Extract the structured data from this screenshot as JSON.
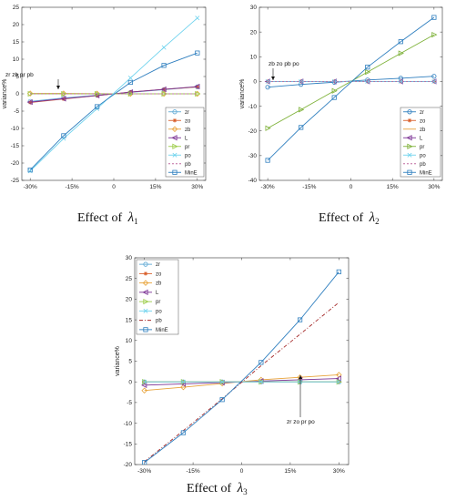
{
  "chart_data": [
    {
      "type": "line",
      "caption": "Effect of",
      "caption_symbol": "λ",
      "caption_sub": "1",
      "ylabel": "variance%",
      "xlabel": "",
      "x": [
        -30,
        -18,
        -6,
        6,
        18,
        30
      ],
      "x_ticks": [
        -30,
        -15,
        0,
        15,
        30
      ],
      "x_tick_labels": [
        "-30%",
        "-15%",
        "0",
        "15%",
        "30%"
      ],
      "xlim": [
        -33,
        33
      ],
      "ylim": [
        -25,
        25
      ],
      "y_ticks": [
        -25,
        -20,
        -15,
        -10,
        -5,
        0,
        5,
        10,
        15,
        20,
        25
      ],
      "grid": false,
      "legend_position": "bottom-right",
      "annotation": "zr zb pr pb",
      "series": [
        {
          "name": "zr",
          "color": "#5fa9d4",
          "marker": "circle",
          "dash": "",
          "values": [
            -2.2,
            -1.2,
            -0.4,
            0.4,
            1.2,
            2.0
          ]
        },
        {
          "name": "zo",
          "color": "#d95f2b",
          "marker": "star",
          "dash": "",
          "values": [
            -2.5,
            -1.5,
            -0.5,
            0.5,
            1.3,
            2.0
          ]
        },
        {
          "name": "zb",
          "color": "#e8a33a",
          "marker": "diamond",
          "dash": "",
          "values": [
            0.1,
            0.1,
            0.05,
            0,
            0,
            0
          ]
        },
        {
          "name": "L",
          "color": "#7b3294",
          "marker": "triangle-left",
          "dash": "",
          "values": [
            -2.4,
            -1.4,
            -0.5,
            0.5,
            1.3,
            2.1
          ]
        },
        {
          "name": "pr",
          "color": "#9ccc48",
          "marker": "triangle-right",
          "dash": "",
          "values": [
            0,
            0,
            0,
            0,
            0,
            0
          ]
        },
        {
          "name": "po",
          "color": "#6fd3ee",
          "marker": "x",
          "dash": "",
          "values": [
            -22.3,
            -12.9,
            -4.3,
            4.6,
            13.4,
            21.9
          ]
        },
        {
          "name": "pb",
          "color": "#c06aa0",
          "marker": "none",
          "dash": "2,2",
          "values": [
            0,
            0,
            0,
            0,
            0,
            0
          ]
        },
        {
          "name": "MinE",
          "color": "#2f7fbf",
          "marker": "square",
          "dash": "",
          "values": [
            -22.0,
            -12.1,
            -3.7,
            3.3,
            8.2,
            11.8
          ]
        }
      ]
    },
    {
      "type": "line",
      "caption": "Effect of",
      "caption_symbol": "λ",
      "caption_sub": "2",
      "ylabel": "variance%",
      "xlabel": "",
      "x": [
        -30,
        -18,
        -6,
        6,
        18,
        30
      ],
      "x_ticks": [
        -30,
        -15,
        0,
        15,
        30
      ],
      "x_tick_labels": [
        "-30%",
        "-15%",
        "0",
        "15%",
        "30%"
      ],
      "xlim": [
        -33,
        33
      ],
      "ylim": [
        -40,
        30
      ],
      "y_ticks": [
        -40,
        -30,
        -20,
        -10,
        0,
        10,
        20,
        30
      ],
      "grid": false,
      "legend_position": "bottom-right",
      "annotation": "zb zo pb po",
      "series": [
        {
          "name": "zr",
          "color": "#2f7fbf",
          "marker": "circle",
          "dash": "",
          "values": [
            -2.3,
            -1.2,
            -0.3,
            0.6,
            1.3,
            2.1
          ]
        },
        {
          "name": "zo",
          "color": "#d95f2b",
          "marker": "star",
          "dash": "",
          "values": [
            0,
            0,
            0,
            0,
            0,
            0
          ]
        },
        {
          "name": "zb",
          "color": "#e8a33a",
          "marker": "none",
          "dash": "",
          "values": [
            0,
            0,
            0,
            0,
            0,
            0
          ]
        },
        {
          "name": "L",
          "color": "#7b3294",
          "marker": "triangle-left",
          "dash": "",
          "values": [
            0,
            0,
            0,
            0,
            0,
            0
          ]
        },
        {
          "name": "pr",
          "color": "#7fb23a",
          "marker": "triangle-right",
          "dash": "",
          "values": [
            -18.9,
            -11.4,
            -3.8,
            3.8,
            11.4,
            18.9
          ]
        },
        {
          "name": "po",
          "color": "#6fd3ee",
          "marker": "x",
          "dash": "",
          "values": [
            0,
            0,
            0,
            0,
            0,
            0
          ]
        },
        {
          "name": "pb",
          "color": "#c06aa0",
          "marker": "none",
          "dash": "2,2",
          "values": [
            0,
            0,
            0,
            0,
            0,
            0
          ]
        },
        {
          "name": "MinE",
          "color": "#2f7fbf",
          "marker": "square",
          "dash": "",
          "values": [
            -31.9,
            -18.6,
            -6.5,
            5.8,
            16.1,
            25.9
          ]
        }
      ]
    },
    {
      "type": "line",
      "caption": "Effect of",
      "caption_symbol": "λ",
      "caption_sub": "3",
      "ylabel": "variance%",
      "xlabel": "",
      "x": [
        -30,
        -18,
        -6,
        6,
        18,
        30
      ],
      "x_ticks": [
        -30,
        -15,
        0,
        15,
        30
      ],
      "x_tick_labels": [
        "-30%",
        "-15%",
        "0",
        "15%",
        "30%"
      ],
      "xlim": [
        -33,
        33
      ],
      "ylim": [
        -20,
        30
      ],
      "y_ticks": [
        -20,
        -15,
        -10,
        -5,
        0,
        5,
        10,
        15,
        20,
        25,
        30
      ],
      "grid": false,
      "legend_position": "top-left",
      "annotation": "zr zo pr po",
      "series": [
        {
          "name": "zr",
          "color": "#5fa9d4",
          "marker": "circle",
          "dash": "",
          "values": [
            0,
            0,
            0,
            0,
            0,
            0
          ]
        },
        {
          "name": "zo",
          "color": "#d95f2b",
          "marker": "star",
          "dash": "",
          "values": [
            0,
            0,
            0,
            0,
            0,
            0
          ]
        },
        {
          "name": "zb",
          "color": "#e8a33a",
          "marker": "diamond",
          "dash": "",
          "values": [
            -2.1,
            -1.3,
            -0.4,
            0.5,
            1.1,
            1.7
          ]
        },
        {
          "name": "L",
          "color": "#7b3294",
          "marker": "triangle-left",
          "dash": "",
          "values": [
            -0.8,
            -0.5,
            -0.2,
            0.2,
            0.5,
            0.8
          ]
        },
        {
          "name": "pr",
          "color": "#9ccc48",
          "marker": "triangle-right",
          "dash": "",
          "values": [
            0,
            0,
            0,
            0,
            0,
            0
          ]
        },
        {
          "name": "po",
          "color": "#6fd3ee",
          "marker": "x",
          "dash": "",
          "values": [
            0,
            0,
            0,
            0,
            0,
            0
          ]
        },
        {
          "name": "pb",
          "color": "#a52a2a",
          "marker": "none",
          "dash": "4,2,1,2",
          "values": [
            -19.3,
            -11.8,
            -4.1,
            3.9,
            11.5,
            19.2
          ]
        },
        {
          "name": "MinE",
          "color": "#2f7fbf",
          "marker": "square",
          "dash": "",
          "values": [
            -19.5,
            -12.3,
            -4.3,
            4.7,
            15.0,
            26.6
          ]
        }
      ]
    }
  ]
}
